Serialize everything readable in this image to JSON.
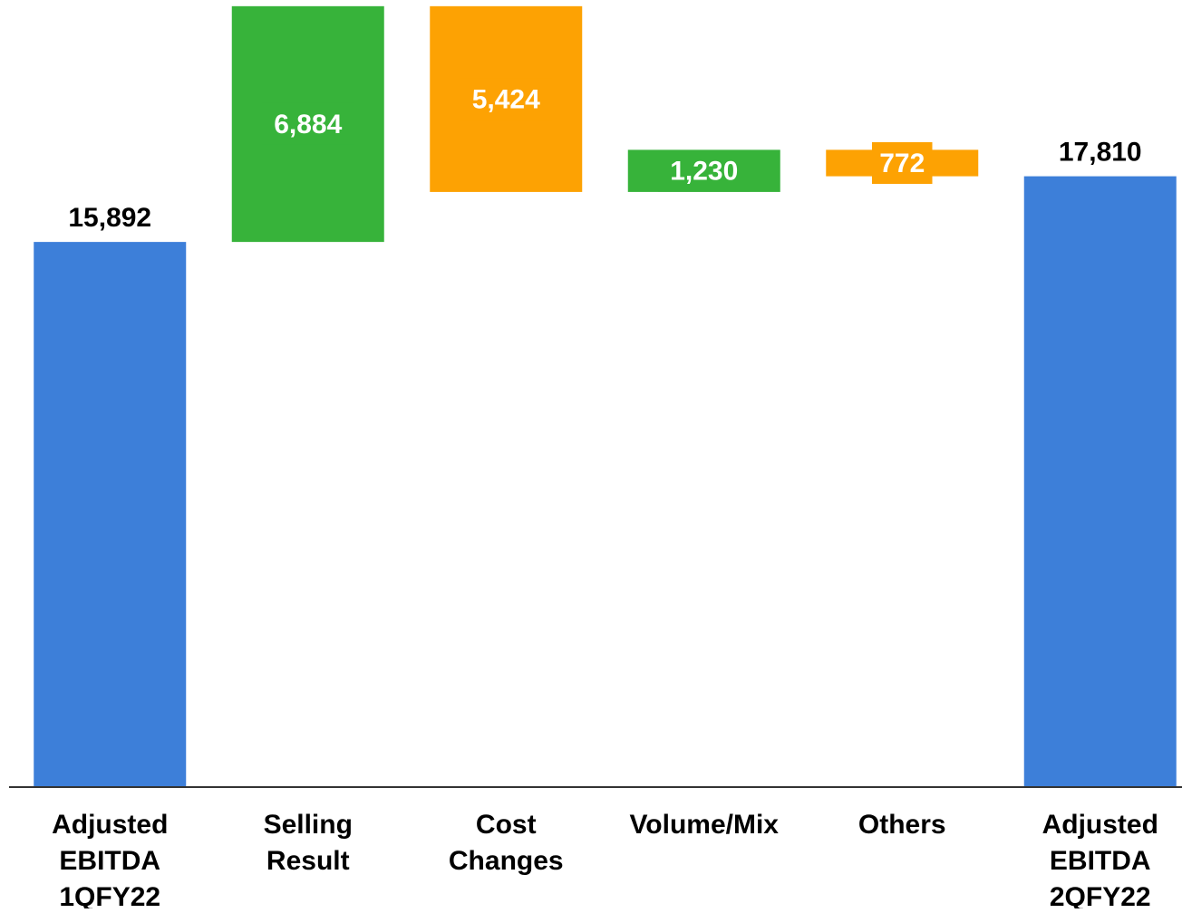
{
  "chart_data": {
    "type": "bar",
    "subtype": "waterfall",
    "categories": [
      [
        "Adjusted",
        "EBITDA",
        "1QFY22"
      ],
      [
        "Selling",
        "Result"
      ],
      [
        "Cost",
        "Changes"
      ],
      [
        "Volume/Mix"
      ],
      [
        "Others"
      ],
      [
        "Adjusted",
        "EBITDA",
        "2QFY22"
      ]
    ],
    "values": [
      15892,
      6884,
      -5424,
      1230,
      -772,
      17810
    ],
    "value_labels": [
      "15,892",
      "6,884",
      "5,424",
      "1,230",
      "772",
      "17,810"
    ],
    "bar_kinds": [
      "total",
      "increase",
      "decrease",
      "increase",
      "decrease",
      "total"
    ],
    "colors": {
      "total": "#3d7fd9",
      "increase": "#37b33a",
      "decrease": "#fda203",
      "axis": "#333333",
      "total_label": "#000000",
      "delta_label": "#ffffff"
    },
    "title": "",
    "xlabel": "",
    "ylabel": "",
    "ylim": [
      0,
      22600
    ],
    "grid": false,
    "legend": "none"
  }
}
